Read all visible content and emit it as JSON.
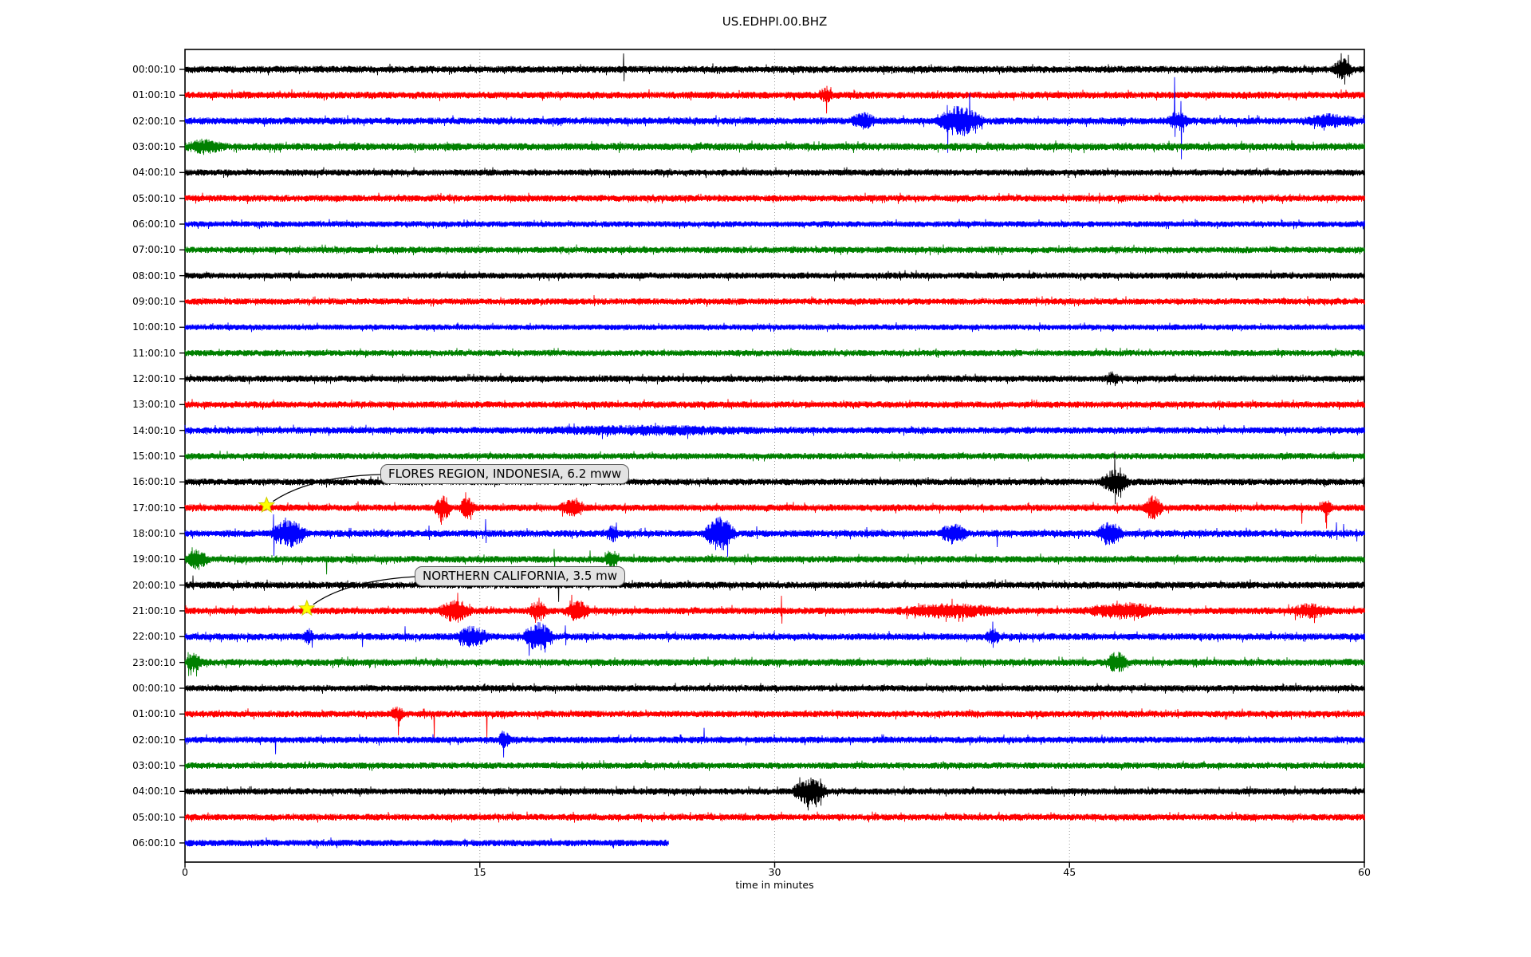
{
  "window": {
    "kind": "seismic-helicorder-plot"
  },
  "palette": {
    "trace_black": "#000000",
    "trace_red": "#ff0000",
    "trace_blue": "#0000ff",
    "trace_green": "#008000",
    "star_fill": "#ffff00",
    "star_edge": "#cccc00",
    "grid": "#999999",
    "spine": "#000000",
    "annotation_bg": "#e3e3e3",
    "annotation_border": "#5a5a5a"
  },
  "chart_data": {
    "type": "line",
    "subtype": "helicorder-drum-plot",
    "title": "US.EDHPI.00.BHZ",
    "xlabel": "time in minutes",
    "x_range": [
      0,
      60
    ],
    "x_ticks": [
      0,
      15,
      30,
      45,
      60
    ],
    "grid": "vertical dotted gridlines at 15, 30 and 45 minutes",
    "legend": "none",
    "color_cycle": [
      "black",
      "red",
      "blue",
      "green"
    ],
    "rows_note": "31 hourly traces; y value lists per row: noise = background noise half-band px; bursts = [start_min, end_min, extra_amp_px]; spikes = [minute, up_px, down_px]",
    "rows": [
      {
        "label": "00:00:10",
        "color": "black",
        "duration": 60,
        "noise": 3.2,
        "bursts": [
          [
            58.3,
            59.5,
            7
          ]
        ],
        "spikes": [
          [
            22.3,
            20,
            15
          ]
        ]
      },
      {
        "label": "01:00:10",
        "color": "red",
        "duration": 60,
        "noise": 3.2,
        "bursts": [
          [
            32.2,
            33.0,
            4
          ]
        ],
        "spikes": [
          [
            2.4,
            7,
            5
          ],
          [
            32.6,
            5,
            23
          ]
        ]
      },
      {
        "label": "02:00:10",
        "color": "blue",
        "duration": 60,
        "noise": 3.2,
        "bursts": [
          [
            33.8,
            35.2,
            5
          ],
          [
            38.1,
            40.7,
            11
          ],
          [
            49.9,
            51.1,
            6
          ],
          [
            56.8,
            59.8,
            4
          ]
        ],
        "spikes": [
          [
            38.8,
            20,
            40
          ],
          [
            39.9,
            35,
            12
          ],
          [
            50.35,
            55,
            20
          ],
          [
            50.65,
            25,
            48
          ]
        ]
      },
      {
        "label": "03:00:10",
        "color": "green",
        "duration": 60,
        "noise": 3.4,
        "bursts": [
          [
            0,
            2,
            4
          ]
        ],
        "spikes": []
      },
      {
        "label": "04:00:10",
        "color": "black",
        "duration": 60,
        "noise": 2.9,
        "bursts": [],
        "spikes": []
      },
      {
        "label": "05:00:10",
        "color": "red",
        "duration": 60,
        "noise": 3.0,
        "bursts": [],
        "spikes": []
      },
      {
        "label": "06:00:10",
        "color": "blue",
        "duration": 60,
        "noise": 2.7,
        "bursts": [],
        "spikes": []
      },
      {
        "label": "07:00:10",
        "color": "green",
        "duration": 60,
        "noise": 2.9,
        "bursts": [],
        "spikes": []
      },
      {
        "label": "08:00:10",
        "color": "black",
        "duration": 60,
        "noise": 2.9,
        "bursts": [],
        "spikes": []
      },
      {
        "label": "09:00:10",
        "color": "red",
        "duration": 60,
        "noise": 2.9,
        "bursts": [],
        "spikes": [
          [
            20.8,
            8,
            6
          ]
        ]
      },
      {
        "label": "10:00:10",
        "color": "blue",
        "duration": 60,
        "noise": 2.6,
        "bursts": [],
        "spikes": []
      },
      {
        "label": "11:00:10",
        "color": "green",
        "duration": 60,
        "noise": 2.8,
        "bursts": [],
        "spikes": []
      },
      {
        "label": "12:00:10",
        "color": "black",
        "duration": 60,
        "noise": 3.0,
        "bursts": [
          [
            46.8,
            47.6,
            4
          ]
        ],
        "spikes": []
      },
      {
        "label": "13:00:10",
        "color": "red",
        "duration": 60,
        "noise": 3.0,
        "bursts": [],
        "spikes": []
      },
      {
        "label": "14:00:10",
        "color": "blue",
        "duration": 60,
        "noise": 3.0,
        "bursts": [
          [
            17,
            30,
            2
          ]
        ],
        "spikes": []
      },
      {
        "label": "15:00:10",
        "color": "green",
        "duration": 60,
        "noise": 2.9,
        "bursts": [],
        "spikes": []
      },
      {
        "label": "16:00:10",
        "color": "black",
        "duration": 60,
        "noise": 3.0,
        "bursts": [
          [
            46.5,
            48.1,
            9
          ]
        ],
        "spikes": [
          [
            47.3,
            38,
            28
          ],
          [
            47.6,
            18,
            20
          ]
        ]
      },
      {
        "label": "17:00:10",
        "color": "red",
        "duration": 60,
        "noise": 3.1,
        "bursts": [
          [
            12.6,
            13.6,
            9
          ],
          [
            13.9,
            14.8,
            7
          ],
          [
            18.9,
            20.4,
            5
          ],
          [
            48.7,
            49.8,
            8
          ],
          [
            57.7,
            58.4,
            5
          ]
        ],
        "spikes": [
          [
            8.8,
            8,
            5
          ],
          [
            13.0,
            6,
            18
          ],
          [
            49.0,
            5,
            13
          ],
          [
            56.8,
            6,
            20
          ],
          [
            58.05,
            8,
            26
          ]
        ]
      },
      {
        "label": "18:00:10",
        "color": "blue",
        "duration": 60,
        "noise": 3.1,
        "bursts": [
          [
            4.2,
            6.3,
            10
          ],
          [
            21.4,
            22.1,
            5
          ],
          [
            26.3,
            28.1,
            13
          ],
          [
            38.3,
            39.9,
            7
          ],
          [
            46.3,
            47.8,
            8
          ]
        ],
        "spikes": [
          [
            4.5,
            24,
            28
          ],
          [
            5.1,
            20,
            14
          ],
          [
            12.4,
            10,
            8
          ],
          [
            15.3,
            18,
            12
          ],
          [
            29.1,
            9,
            7
          ],
          [
            34.7,
            8,
            6
          ],
          [
            41.3,
            5,
            17
          ],
          [
            52.5,
            7,
            5
          ],
          [
            58.6,
            14,
            8
          ],
          [
            58.95,
            12,
            6
          ],
          [
            59.6,
            6,
            10
          ]
        ]
      },
      {
        "label": "19:00:10",
        "color": "green",
        "duration": 60,
        "noise": 3.1,
        "bursts": [
          [
            0,
            1.3,
            7
          ],
          [
            21.3,
            22.1,
            6
          ]
        ],
        "spikes": [
          [
            0.35,
            15,
            8
          ],
          [
            7.2,
            4,
            19
          ],
          [
            15.2,
            6,
            5
          ],
          [
            18.8,
            13,
            15
          ],
          [
            20.6,
            11,
            5
          ]
        ]
      },
      {
        "label": "20:00:10",
        "color": "black",
        "duration": 60,
        "noise": 3.1,
        "bursts": [],
        "spikes": [
          [
            0.4,
            12,
            6
          ],
          [
            19.0,
            4,
            21
          ]
        ]
      },
      {
        "label": "21:00:10",
        "color": "red",
        "duration": 60,
        "noise": 3.1,
        "bursts": [
          [
            12.8,
            14.7,
            8
          ],
          [
            17.4,
            18.5,
            7
          ],
          [
            19.2,
            20.7,
            7
          ],
          [
            35.8,
            42,
            4
          ],
          [
            45.5,
            50,
            5
          ],
          [
            56,
            58.5,
            4
          ]
        ],
        "spikes": [
          [
            17.8,
            4,
            15
          ],
          [
            19.6,
            13,
            5
          ],
          [
            30.35,
            19,
            16
          ],
          [
            48.3,
            10,
            4
          ]
        ]
      },
      {
        "label": "22:00:10",
        "color": "blue",
        "duration": 60,
        "noise": 3.1,
        "bursts": [
          [
            5.9,
            6.6,
            5
          ],
          [
            13.7,
            15.6,
            7
          ],
          [
            17.1,
            18.9,
            11
          ],
          [
            40.7,
            41.5,
            5
          ]
        ],
        "spikes": [
          [
            9.0,
            5,
            13
          ],
          [
            11.2,
            13,
            6
          ],
          [
            14.1,
            5,
            12
          ],
          [
            15.0,
            4,
            10
          ],
          [
            17.5,
            8,
            24
          ],
          [
            18.3,
            6,
            20
          ],
          [
            19.35,
            14,
            11
          ]
        ]
      },
      {
        "label": "23:00:10",
        "color": "green",
        "duration": 60,
        "noise": 3.2,
        "bursts": [
          [
            0,
            0.9,
            6
          ],
          [
            46.8,
            48.0,
            7
          ]
        ],
        "spikes": [
          [
            0.15,
            13,
            17
          ],
          [
            37.9,
            6,
            4
          ]
        ]
      },
      {
        "label": "00:00:10",
        "color": "black",
        "duration": 60,
        "noise": 2.9,
        "bursts": [],
        "spikes": []
      },
      {
        "label": "01:00:10",
        "color": "red",
        "duration": 60,
        "noise": 3.0,
        "bursts": [
          [
            10.4,
            11.2,
            5
          ]
        ],
        "spikes": [
          [
            10.85,
            4,
            27
          ],
          [
            12.65,
            3,
            31
          ],
          [
            15.35,
            4,
            31
          ]
        ]
      },
      {
        "label": "02:00:10",
        "color": "blue",
        "duration": 60,
        "noise": 3.0,
        "bursts": [
          [
            15.9,
            16.6,
            6
          ]
        ],
        "spikes": [
          [
            4.6,
            4,
            18
          ],
          [
            16.2,
            8,
            22
          ],
          [
            26.4,
            15,
            4
          ]
        ]
      },
      {
        "label": "03:00:10",
        "color": "green",
        "duration": 60,
        "noise": 2.9,
        "bursts": [],
        "spikes": [
          [
            23.4,
            7,
            3
          ]
        ]
      },
      {
        "label": "04:00:10",
        "color": "black",
        "duration": 60,
        "noise": 3.0,
        "bursts": [
          [
            30.8,
            32.8,
            10
          ]
        ],
        "spikes": [
          [
            31.7,
            8,
            24
          ],
          [
            32.1,
            14,
            20
          ],
          [
            32.35,
            16,
            18
          ]
        ]
      },
      {
        "label": "05:00:10",
        "color": "red",
        "duration": 60,
        "noise": 3.0,
        "bursts": [],
        "spikes": []
      },
      {
        "label": "06:00:10",
        "color": "blue",
        "duration": 24.6,
        "noise": 3.0,
        "bursts": [],
        "spikes": []
      }
    ],
    "annotations": [
      {
        "label": "FLORES REGION, INDONESIA, 6.2 mww",
        "row": 17,
        "t": 4.15,
        "marker": "yellow-star"
      },
      {
        "label": "NORTHERN CALIFORNIA, 3.5 mw",
        "row": 21,
        "t": 6.2,
        "marker": "yellow-star"
      }
    ]
  }
}
